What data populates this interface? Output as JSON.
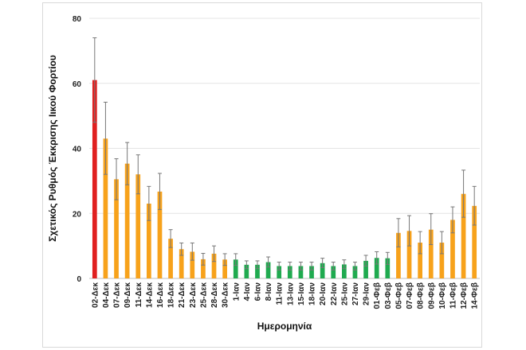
{
  "chart_data": {
    "type": "bar",
    "xlabel": "Ημερομηνία",
    "ylabel": "Σχετικός Ρυθμός Έκκρισης Ιικού Φορτίου",
    "ylim": [
      0,
      80
    ],
    "yticks": [
      0,
      20,
      40,
      60,
      80
    ],
    "grid": true,
    "legend": "none",
    "colors": {
      "high": "#e02020",
      "medium": "#f7a21b",
      "low": "#1faa4f",
      "error_bar": "#777777",
      "grid": "#e4e4e4"
    },
    "categories": [
      "02-Δεκ",
      "04-Δεκ",
      "07-Δεκ",
      "09-Δεκ",
      "11-Δεκ",
      "14-Δεκ",
      "16-Δεκ",
      "18-Δεκ",
      "21-Δεκ",
      "23-Δεκ",
      "25-Δεκ",
      "28-Δεκ",
      "30-Δεκ",
      "1-Ιαν",
      "4-Ιαν",
      "6-Ιαν",
      "8-Ιαν",
      "11-Ιαν",
      "13-Ιαν",
      "15-Ιαν",
      "18-Ιαν",
      "20-Ιαν",
      "22-Ιαν",
      "25-Ιαν",
      "27-Ιαν",
      "29-Ιαν",
      "01-Φεβ",
      "03-Φεβ",
      "05-Φεβ",
      "07-Φεβ",
      "08-Φεβ",
      "09-Φεβ",
      "10-Φεβ",
      "11-Φεβ",
      "12-Φεβ",
      "14-Φεβ"
    ],
    "values": [
      61,
      43,
      30.5,
      35.3,
      32,
      23,
      26.7,
      12.2,
      9,
      8.2,
      5.9,
      7.6,
      5.8,
      5.8,
      4.2,
      4.2,
      5,
      3.8,
      3.8,
      3.8,
      3.8,
      4.7,
      3.8,
      4.3,
      3.8,
      5.4,
      6.3,
      6.2,
      14,
      14.6,
      11,
      15,
      11,
      18,
      26,
      22.3
    ],
    "error_high": [
      74,
      54.2,
      36.8,
      41.8,
      38,
      28.3,
      32.3,
      15,
      10.9,
      10.9,
      7.7,
      10,
      7.6,
      7.6,
      5.4,
      5.4,
      6.6,
      5,
      5,
      5,
      5,
      6.2,
      5,
      5.7,
      5,
      7.1,
      8.2,
      8,
      18.4,
      19.3,
      14.4,
      19.9,
      14.4,
      22,
      33.3,
      28.3
    ],
    "error_low": [
      48,
      32,
      24.2,
      28.8,
      26,
      17.8,
      21.2,
      9.5,
      7.1,
      5.6,
      4.1,
      5.2,
      4,
      4,
      3,
      3,
      3.5,
      2.6,
      2.6,
      2.6,
      2.6,
      3.3,
      2.6,
      3,
      2.6,
      3.8,
      4.4,
      4.3,
      9.7,
      10,
      7.6,
      10.4,
      7.6,
      14,
      18.8,
      16.4
    ],
    "levels": [
      "high",
      "medium",
      "medium",
      "medium",
      "medium",
      "medium",
      "medium",
      "medium",
      "medium",
      "medium",
      "medium",
      "medium",
      "medium",
      "low",
      "low",
      "low",
      "low",
      "low",
      "low",
      "low",
      "low",
      "low",
      "low",
      "low",
      "low",
      "low",
      "low",
      "low",
      "medium",
      "medium",
      "medium",
      "medium",
      "medium",
      "medium",
      "medium",
      "medium"
    ]
  }
}
